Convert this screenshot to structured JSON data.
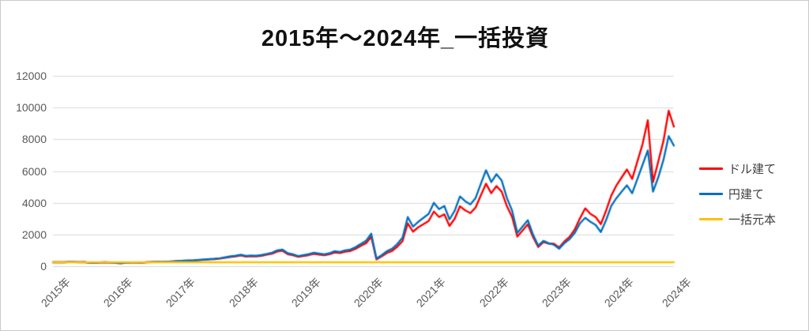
{
  "window": {
    "background": "#ffffff",
    "border_color": "#c9c9c9"
  },
  "chart_data": {
    "type": "line",
    "title": "2015年～2024年_一括投資",
    "xlabel": "",
    "ylabel": "",
    "ylim": [
      0,
      12000
    ],
    "y_ticks": [
      0,
      2000,
      4000,
      6000,
      8000,
      10000,
      12000
    ],
    "x_tick_labels": [
      "2015年",
      "2016年",
      "2017年",
      "2018年",
      "2019年",
      "2020年",
      "2021年",
      "2022年",
      "2023年",
      "2024年",
      "2024年"
    ],
    "x_tick_point_indices": [
      0,
      12,
      24,
      36,
      48,
      60,
      72,
      84,
      96,
      108,
      119
    ],
    "x_sampling": "monthly points Jan 2015 - Dec 2024",
    "grid": "horizontal",
    "gridline_color": "#d9d9d9",
    "axis_label_color": "#595959",
    "legend_position": "right",
    "legend_text_color": "#3f3f3f",
    "series": [
      {
        "name": "ドル建て",
        "color": "#fe0000",
        "values": [
          248,
          255,
          250,
          258,
          264,
          252,
          259,
          216,
          205,
          236,
          246,
          232,
          204,
          190,
          220,
          228,
          235,
          226,
          251,
          261,
          271,
          265,
          283,
          300,
          322,
          339,
          352,
          363,
          385,
          405,
          428,
          450,
          482,
          532,
          585,
          620,
          685,
          608,
          635,
          615,
          660,
          725,
          790,
          930,
          975,
          760,
          695,
          590,
          645,
          700,
          780,
          735,
          690,
          755,
          870,
          825,
          915,
          960,
          1100,
          1280,
          1450,
          1850,
          430,
          620,
          840,
          970,
          1230,
          1580,
          2700,
          2180,
          2450,
          2650,
          2850,
          3450,
          3100,
          3270,
          2540,
          3000,
          3780,
          3520,
          3350,
          3700,
          4470,
          5200,
          4600,
          5050,
          4700,
          3780,
          3100,
          1870,
          2250,
          2640,
          1840,
          1210,
          1530,
          1420,
          1420,
          1180,
          1560,
          1850,
          2320,
          3020,
          3650,
          3300,
          3100,
          2650,
          3500,
          4450,
          5100,
          5600,
          6100,
          5500,
          6600,
          7700,
          9200,
          5300,
          6600,
          7900,
          9800,
          8800
        ]
      },
      {
        "name": "円建て",
        "color": "#0070c0",
        "values": [
          250,
          257,
          252,
          261,
          267,
          256,
          263,
          220,
          210,
          240,
          250,
          237,
          210,
          196,
          226,
          233,
          240,
          231,
          257,
          267,
          277,
          271,
          289,
          306,
          330,
          348,
          362,
          375,
          398,
          420,
          445,
          470,
          505,
          560,
          620,
          660,
          730,
          650,
          680,
          660,
          710,
          780,
          850,
          1000,
          1050,
          820,
          750,
          640,
          700,
          760,
          850,
          800,
          750,
          820,
          950,
          900,
          1000,
          1050,
          1200,
          1400,
          1600,
          2050,
          480,
          700,
          950,
          1100,
          1400,
          1800,
          3100,
          2500,
          2800,
          3050,
          3300,
          4000,
          3600,
          3800,
          2950,
          3500,
          4400,
          4100,
          3900,
          4300,
          5200,
          6050,
          5300,
          5800,
          5400,
          4300,
          3500,
          2100,
          2500,
          2900,
          2000,
          1300,
          1600,
          1450,
          1350,
          1100,
          1450,
          1700,
          2100,
          2700,
          3050,
          2800,
          2600,
          2150,
          2900,
          3800,
          4300,
          4700,
          5100,
          4600,
          5500,
          6400,
          7300,
          4700,
          5600,
          6700,
          8200,
          7600
        ]
      },
      {
        "name": "一括元本",
        "color": "#ffc000",
        "constant_value": 250
      }
    ]
  }
}
